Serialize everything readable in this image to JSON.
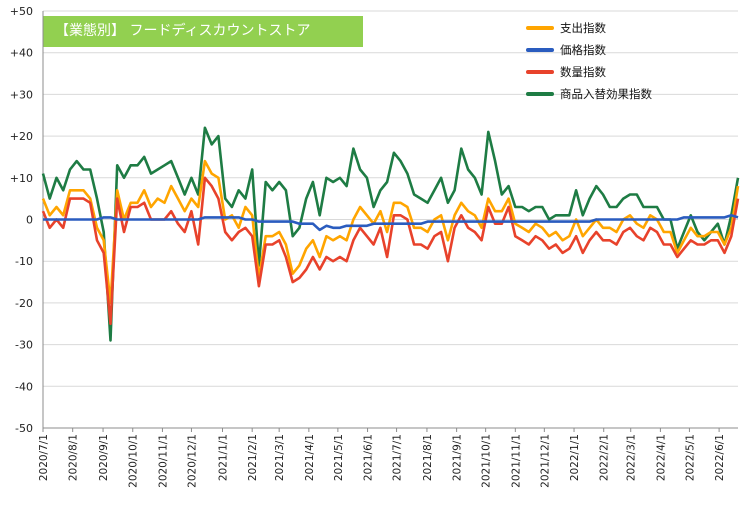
{
  "chart_data": {
    "type": "line",
    "title": "【業態別】 フードディスカウントストア",
    "xlabel": "",
    "ylabel": "",
    "ylim": [
      -50,
      50
    ],
    "y_ticks": [
      "+50",
      "+40",
      "+30",
      "+20",
      "+10",
      "0",
      "-10",
      "-20",
      "-30",
      "-40",
      "-50"
    ],
    "y_tick_values": [
      50,
      40,
      30,
      20,
      10,
      0,
      -10,
      -20,
      -30,
      -40,
      -50
    ],
    "x_tick_labels": [
      "2020/7/1",
      "2020/8/1",
      "2020/9/1",
      "2020/10/1",
      "2020/11/1",
      "2020/12/1",
      "2021/1/1",
      "2021/2/1",
      "2021/3/1",
      "2021/4/1",
      "2021/5/1",
      "2021/6/1",
      "2021/7/1",
      "2021/8/1",
      "2021/9/1",
      "2021/10/1",
      "2021/11/1",
      "2021/12/1",
      "2022/1/1",
      "2022/2/1",
      "2022/3/1",
      "2022/4/1",
      "2022/5/1",
      "2022/6/1"
    ],
    "x_tick_positions": [
      0,
      4.4,
      8.9,
      13.3,
      17.7,
      22,
      26.6,
      31,
      35,
      39.4,
      43.7,
      48.1,
      52.4,
      56.9,
      61.3,
      65.6,
      70,
      74.3,
      78.7,
      83.1,
      87.1,
      91.5,
      95.8,
      100.2
    ],
    "legend_position": "top-right",
    "grid": true,
    "series": [
      {
        "name": "支出指数",
        "color": "#ffa500",
        "values": [
          5,
          1,
          3,
          1,
          7,
          7,
          7,
          5,
          -2,
          -5,
          -20,
          7,
          0,
          4,
          4,
          7,
          3,
          5,
          4,
          8,
          5,
          2,
          5,
          3,
          14,
          11,
          10,
          0,
          1,
          -2,
          3,
          1,
          -14,
          -4,
          -4,
          -3,
          -6,
          -13,
          -11,
          -7,
          -5,
          -9,
          -4,
          -5,
          -4,
          -5,
          0,
          3,
          1,
          -1,
          2,
          -3,
          4,
          4,
          3,
          -2,
          -2,
          -3,
          0,
          1,
          -5,
          1,
          4,
          2,
          1,
          -2,
          5,
          2,
          2,
          5,
          -1,
          -2,
          -3,
          -1,
          -2,
          -4,
          -3,
          -5,
          -4,
          0,
          -4,
          -2,
          0,
          -2,
          -2,
          -3,
          0,
          1,
          -1,
          -2,
          1,
          0,
          -3,
          -3,
          -8,
          -5,
          -2,
          -4,
          -4,
          -3,
          -3,
          -6,
          -2,
          8
        ]
      },
      {
        "name": "価格指数",
        "color": "#2a5cbf",
        "values": [
          0,
          0,
          0,
          0,
          0,
          0,
          0,
          0,
          0,
          0.5,
          0.5,
          0,
          0,
          0,
          0,
          0,
          0,
          0,
          0,
          0,
          0,
          0,
          0,
          0,
          0.5,
          0.5,
          0.5,
          0.5,
          0.5,
          0.5,
          0,
          0,
          -0.5,
          -0.5,
          -0.5,
          -0.5,
          -0.5,
          -0.5,
          -1,
          -1,
          -1,
          -2.5,
          -1.5,
          -2,
          -2,
          -1.5,
          -1.5,
          -1.5,
          -1.5,
          -1,
          -1,
          -1,
          -1,
          -1,
          -1,
          -1,
          -1,
          -0.5,
          -0.5,
          -0.5,
          -0.5,
          -0.5,
          -0.5,
          -0.5,
          -0.5,
          -0.5,
          -0.5,
          -0.5,
          -0.5,
          -0.5,
          -0.5,
          -0.5,
          -0.5,
          -0.5,
          -0.5,
          -0.5,
          -0.5,
          -0.5,
          -0.5,
          -0.5,
          -0.5,
          -0.5,
          0,
          0,
          0,
          0,
          0,
          0,
          0,
          0,
          0,
          0,
          0,
          0,
          0,
          0.5,
          0.5,
          0.5,
          0.5,
          0.5,
          0.5,
          0.5,
          1,
          0.5
        ]
      },
      {
        "name": "数量指数",
        "color": "#e8422b",
        "values": [
          2,
          -2,
          0,
          -2,
          5,
          5,
          5,
          4,
          -5,
          -8,
          -25,
          5,
          -3,
          3,
          3,
          4,
          0,
          0,
          0,
          2,
          -1,
          -3,
          2,
          -6,
          10,
          8,
          5,
          -3,
          -5,
          -3,
          -2,
          -4,
          -16,
          -6,
          -6,
          -5,
          -9,
          -15,
          -14,
          -12,
          -9,
          -12,
          -9,
          -10,
          -9,
          -10,
          -5,
          -2,
          -4,
          -6,
          -2,
          -9,
          1,
          1,
          0,
          -6,
          -6,
          -7,
          -4,
          -3,
          -10,
          -2,
          1,
          -2,
          -3,
          -5,
          3,
          -1,
          -1,
          3,
          -4,
          -5,
          -6,
          -4,
          -5,
          -7,
          -6,
          -8,
          -7,
          -4,
          -8,
          -5,
          -3,
          -5,
          -5,
          -6,
          -3,
          -2,
          -4,
          -5,
          -2,
          -3,
          -6,
          -6,
          -9,
          -7,
          -5,
          -6,
          -6,
          -5,
          -5,
          -8,
          -4,
          5
        ]
      },
      {
        "name": "商品入替効果指数",
        "color": "#1e7c44",
        "values": [
          11,
          5,
          10,
          7,
          12,
          14,
          12,
          12,
          5,
          -3,
          -29,
          13,
          10,
          13,
          13,
          15,
          11,
          12,
          13,
          14,
          10,
          6,
          10,
          6,
          22,
          18,
          20,
          5,
          3,
          7,
          5,
          12,
          -11,
          9,
          7,
          9,
          7,
          -4,
          -2,
          5,
          9,
          1,
          10,
          9,
          10,
          8,
          17,
          12,
          10,
          3,
          7,
          9,
          16,
          14,
          11,
          6,
          5,
          4,
          7,
          10,
          4,
          7,
          17,
          12,
          10,
          6,
          21,
          14,
          6,
          8,
          3,
          3,
          2,
          3,
          3,
          0,
          1,
          1,
          1,
          7,
          1,
          5,
          8,
          6,
          3,
          3,
          5,
          6,
          6,
          3,
          3,
          3,
          0,
          0,
          -7,
          -3,
          1,
          -3,
          -5,
          -3,
          -1,
          -6,
          1,
          10
        ]
      }
    ]
  }
}
